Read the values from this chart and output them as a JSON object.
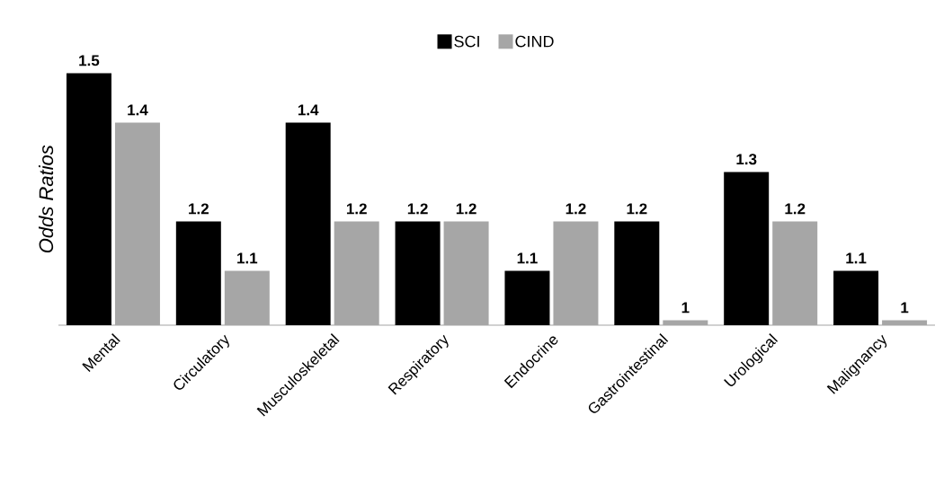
{
  "chart_data": {
    "type": "bar",
    "ylabel": "Odds Ratios",
    "categories": [
      "Mental",
      "Circulatory",
      "Musculoskeletal",
      "Respiratory",
      "Endocrine",
      "Gastrointestinal",
      "Urological",
      "Malignancy"
    ],
    "series": [
      {
        "name": "SCI",
        "color": "#000000",
        "values": [
          1.5,
          1.2,
          1.4,
          1.2,
          1.1,
          1.2,
          1.3,
          1.1
        ]
      },
      {
        "name": "CIND",
        "color": "#a6a6a6",
        "values": [
          1.4,
          1.1,
          1.2,
          1.2,
          1.2,
          1,
          1.2,
          1
        ]
      }
    ],
    "ylim": [
      0.99,
      1.5
    ],
    "data_labels": true,
    "legend": "top"
  }
}
